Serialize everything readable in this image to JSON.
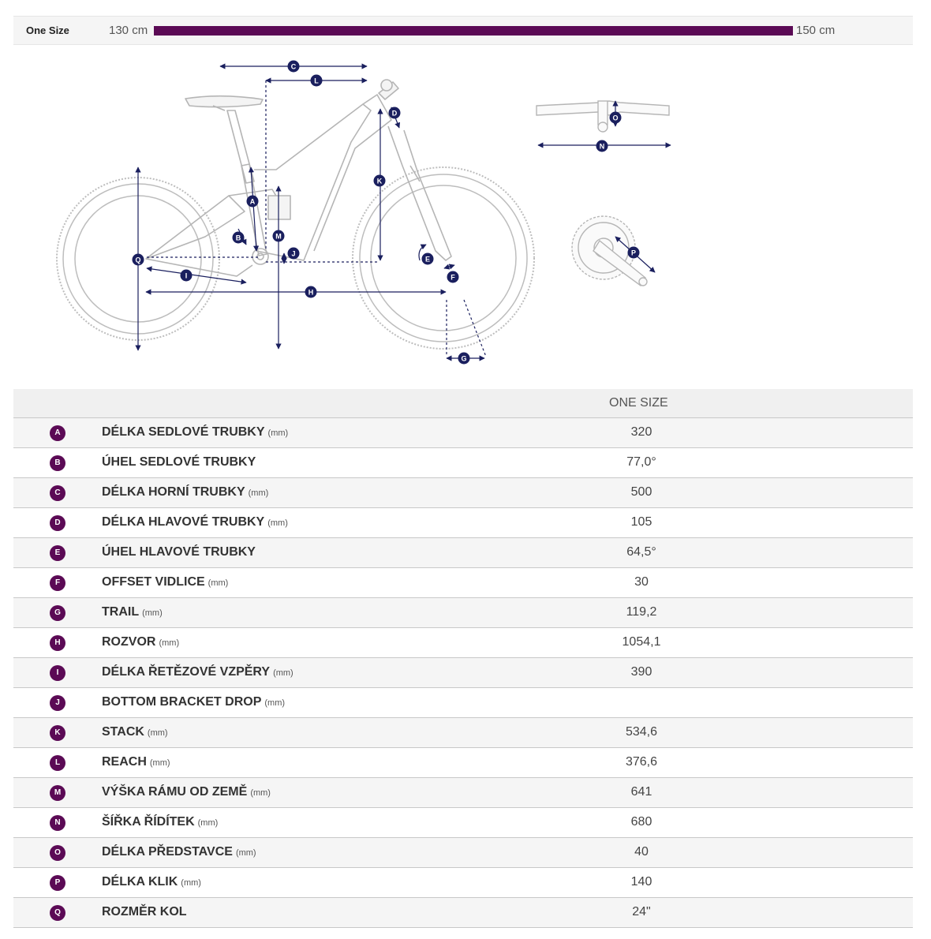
{
  "size_bar": {
    "label": "One Size",
    "min": "130 cm",
    "max": "150 cm"
  },
  "diagram": {
    "markers": [
      "A",
      "B",
      "C",
      "D",
      "E",
      "F",
      "G",
      "H",
      "I",
      "J",
      "K",
      "L",
      "M",
      "N",
      "O",
      "P",
      "Q"
    ],
    "colors": {
      "frame": "#bdbdbd",
      "dim": "#1a1f5e",
      "accent": "#5b0a55"
    }
  },
  "table": {
    "column_header": "ONE SIZE",
    "rows": [
      {
        "code": "A",
        "name": "DÉLKA SEDLOVÉ TRUBKY",
        "unit": "(mm)",
        "value": "320"
      },
      {
        "code": "B",
        "name": "ÚHEL SEDLOVÉ TRUBKY",
        "unit": "",
        "value": "77,0°"
      },
      {
        "code": "C",
        "name": "DÉLKA HORNÍ TRUBKY",
        "unit": "(mm)",
        "value": "500"
      },
      {
        "code": "D",
        "name": "DÉLKA HLAVOVÉ TRUBKY",
        "unit": "(mm)",
        "value": "105"
      },
      {
        "code": "E",
        "name": "ÚHEL HLAVOVÉ TRUBKY",
        "unit": "",
        "value": "64,5°"
      },
      {
        "code": "F",
        "name": "OFFSET VIDLICE",
        "unit": "(mm)",
        "value": "30"
      },
      {
        "code": "G",
        "name": "TRAIL",
        "unit": "(mm)",
        "value": "119,2"
      },
      {
        "code": "H",
        "name": "ROZVOR",
        "unit": "(mm)",
        "value": "1054,1"
      },
      {
        "code": "I",
        "name": "DÉLKA ŘETĚZOVÉ VZPĚRY",
        "unit": "(mm)",
        "value": "390"
      },
      {
        "code": "J",
        "name": "BOTTOM BRACKET DROP",
        "unit": "(mm)",
        "value": ""
      },
      {
        "code": "K",
        "name": "STACK",
        "unit": "(mm)",
        "value": "534,6"
      },
      {
        "code": "L",
        "name": "REACH",
        "unit": "(mm)",
        "value": "376,6"
      },
      {
        "code": "M",
        "name": "VÝŠKA RÁMU OD ZEMĚ",
        "unit": "(mm)",
        "value": "641"
      },
      {
        "code": "N",
        "name": "ŠÍŘKA ŘÍDÍTEK",
        "unit": "(mm)",
        "value": "680"
      },
      {
        "code": "O",
        "name": "DÉLKA PŘEDSTAVCE",
        "unit": "(mm)",
        "value": "40"
      },
      {
        "code": "P",
        "name": "DÉLKA KLIK",
        "unit": "(mm)",
        "value": "140"
      },
      {
        "code": "Q",
        "name": "ROZMĚR KOL",
        "unit": "",
        "value": "24\""
      }
    ]
  }
}
